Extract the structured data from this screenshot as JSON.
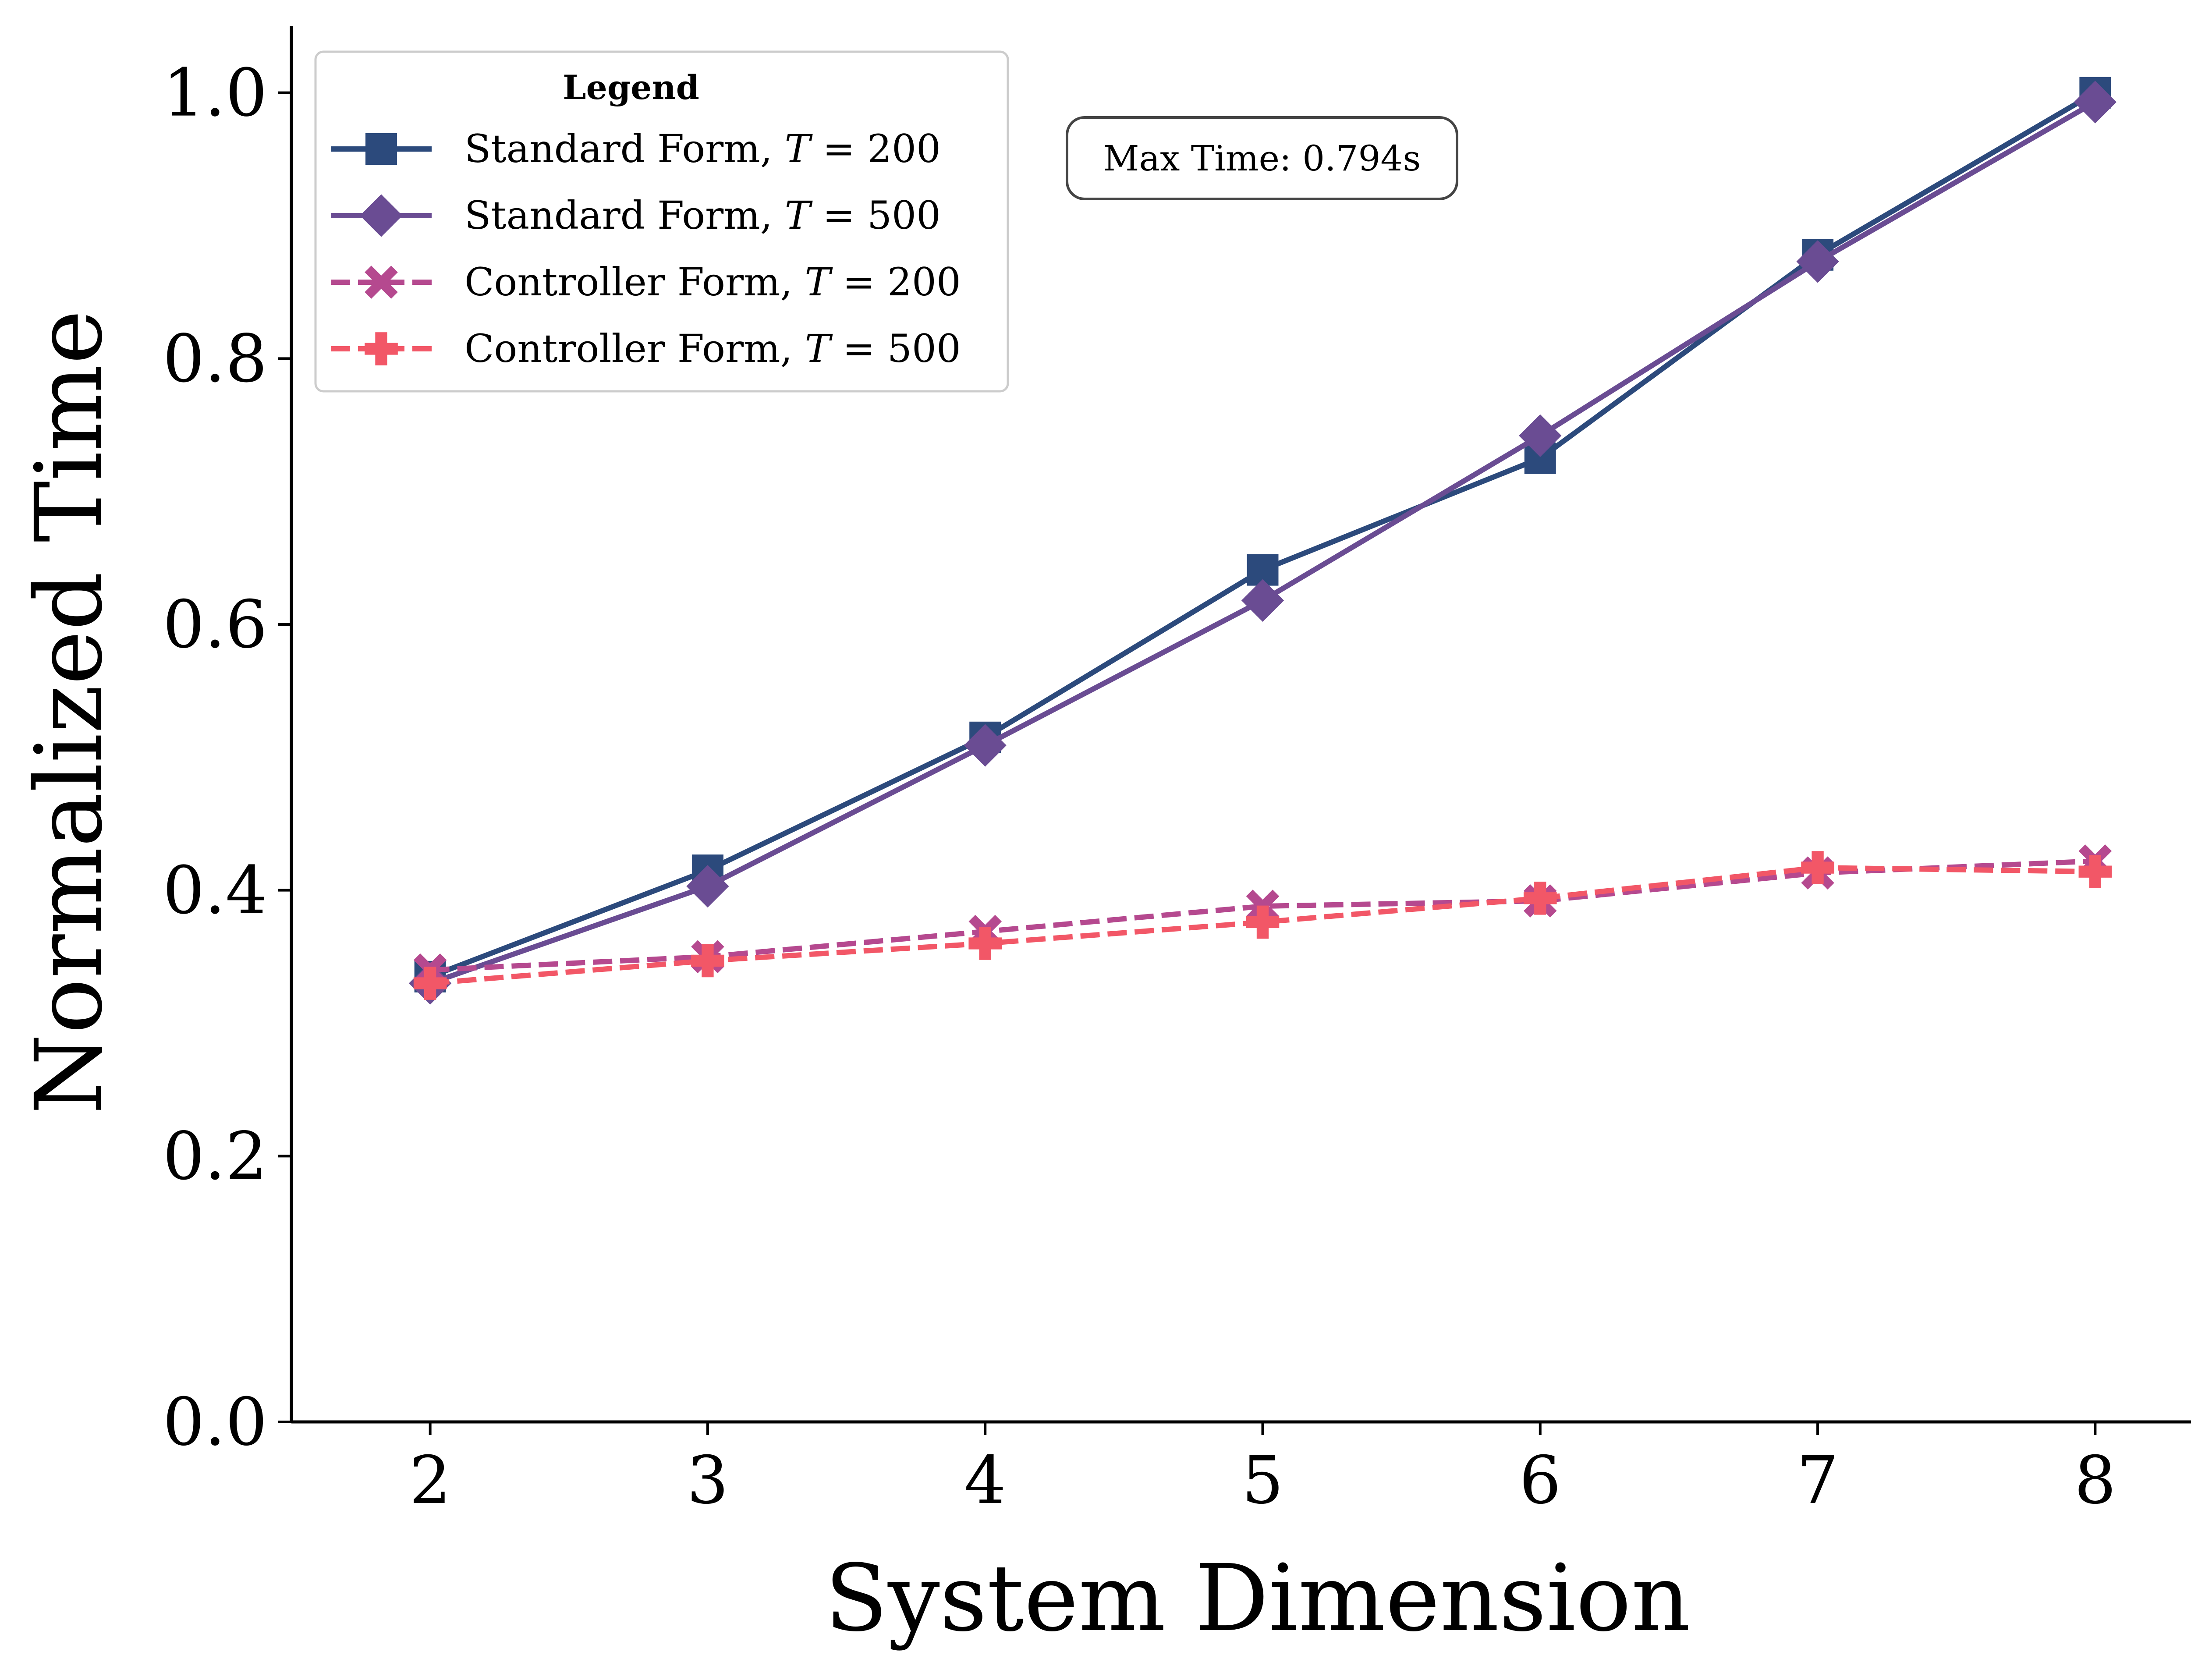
{
  "chart_data": {
    "type": "line",
    "title": "",
    "xlabel": "System Dimension",
    "ylabel": "Normalized Time",
    "x": [
      2,
      3,
      4,
      5,
      6,
      7,
      8
    ],
    "xticks": [
      "2",
      "3",
      "4",
      "5",
      "6",
      "7",
      "8"
    ],
    "yticks": [
      "0.0",
      "0.2",
      "0.4",
      "0.6",
      "0.8",
      "1.0"
    ],
    "xlim": [
      1.5,
      8.5
    ],
    "ylim": [
      0.0,
      1.05
    ],
    "grid": false,
    "legend": {
      "title": "Legend",
      "placement": "top-left"
    },
    "annotation": "Max Time: 0.794s",
    "series": [
      {
        "name": "Standard Form, T = 200",
        "label_prefix": "Standard Form, ",
        "label_var": "T",
        "label_eq": " = 200",
        "values": [
          0.335,
          0.415,
          0.515,
          0.641,
          0.725,
          0.878,
          1.0
        ],
        "color": "#2c4a7c",
        "marker": "square",
        "dash": "solid"
      },
      {
        "name": "Standard Form, T = 500",
        "label_prefix": "Standard Form, ",
        "label_var": "T",
        "label_eq": " = 500",
        "values": [
          0.33,
          0.403,
          0.509,
          0.618,
          0.742,
          0.873,
          0.993
        ],
        "color": "#6a4c93",
        "marker": "diamond",
        "dash": "solid"
      },
      {
        "name": "Controller Form, T = 200",
        "label_prefix": "Controller Form, ",
        "label_var": "T",
        "label_eq": " = 200",
        "values": [
          0.34,
          0.35,
          0.369,
          0.388,
          0.392,
          0.413,
          0.422
        ],
        "color": "#b5498f",
        "marker": "x",
        "dash": "dashed"
      },
      {
        "name": "Controller Form, T = 500",
        "label_prefix": "Controller Form, ",
        "label_var": "T",
        "label_eq": " = 500",
        "values": [
          0.33,
          0.347,
          0.36,
          0.376,
          0.394,
          0.417,
          0.414
        ],
        "color": "#f25767",
        "marker": "plus",
        "dash": "dashed"
      }
    ]
  }
}
